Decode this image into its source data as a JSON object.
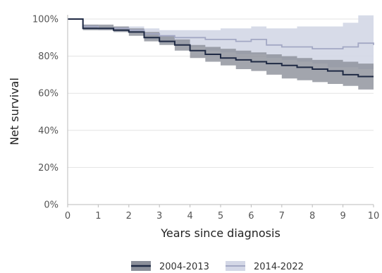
{
  "chart_data": {
    "type": "line",
    "xlabel": "Years since diagnosis",
    "ylabel": "Net survival",
    "xlim": [
      0,
      10
    ],
    "ylim": [
      0,
      100
    ],
    "x_ticks": [
      "0",
      "1",
      "2",
      "3",
      "4",
      "5",
      "6",
      "7",
      "8",
      "9",
      "10"
    ],
    "y_ticks": [
      "0%",
      "20%",
      "40%",
      "60%",
      "80%",
      "100%"
    ],
    "grid": "horizontal",
    "legend_position": "bottom",
    "series": [
      {
        "name": "2004-2013",
        "line_color": "#1f2a44",
        "band_color": "#8b8f99",
        "x": [
          0,
          0.5,
          1,
          1.5,
          2,
          2.5,
          3,
          3.5,
          4,
          4.5,
          5,
          5.5,
          6,
          6.5,
          7,
          7.5,
          8,
          8.5,
          9,
          9.5,
          10
        ],
        "y": [
          100,
          95,
          95,
          94,
          93,
          90,
          88,
          86,
          83,
          81,
          79,
          78,
          77,
          76,
          75,
          74,
          73,
          72,
          70,
          69,
          69
        ],
        "lower": [
          100,
          94,
          94,
          93,
          91,
          88,
          86,
          83,
          79,
          77,
          75,
          73,
          72,
          70,
          68,
          67,
          66,
          65,
          64,
          62,
          62
        ],
        "upper": [
          100,
          97,
          97,
          96,
          95,
          93,
          91,
          89,
          86,
          85,
          84,
          83,
          82,
          81,
          80,
          79,
          78,
          78,
          77,
          76,
          76
        ]
      },
      {
        "name": "2014-2022",
        "line_color": "#a3a8c4",
        "band_color": "#d3d7e6",
        "x": [
          0,
          0.5,
          1,
          1.5,
          2,
          2.5,
          3,
          3.5,
          4,
          4.5,
          5,
          5.5,
          6,
          6.5,
          7,
          7.5,
          8,
          8.5,
          9,
          9.5,
          10
        ],
        "y": [
          100,
          96,
          95,
          95,
          94,
          92,
          91,
          90,
          90,
          89,
          89,
          88,
          89,
          86,
          85,
          85,
          84,
          84,
          85,
          87,
          86
        ],
        "lower": [
          100,
          95,
          94,
          93,
          93,
          89,
          87,
          86,
          85,
          83,
          82,
          81,
          81,
          79,
          78,
          77,
          76,
          74,
          74,
          73,
          72
        ],
        "upper": [
          100,
          97,
          96,
          96,
          96,
          95,
          94,
          94,
          94,
          94,
          95,
          95,
          96,
          95,
          95,
          96,
          96,
          96,
          98,
          102,
          104
        ]
      }
    ]
  }
}
